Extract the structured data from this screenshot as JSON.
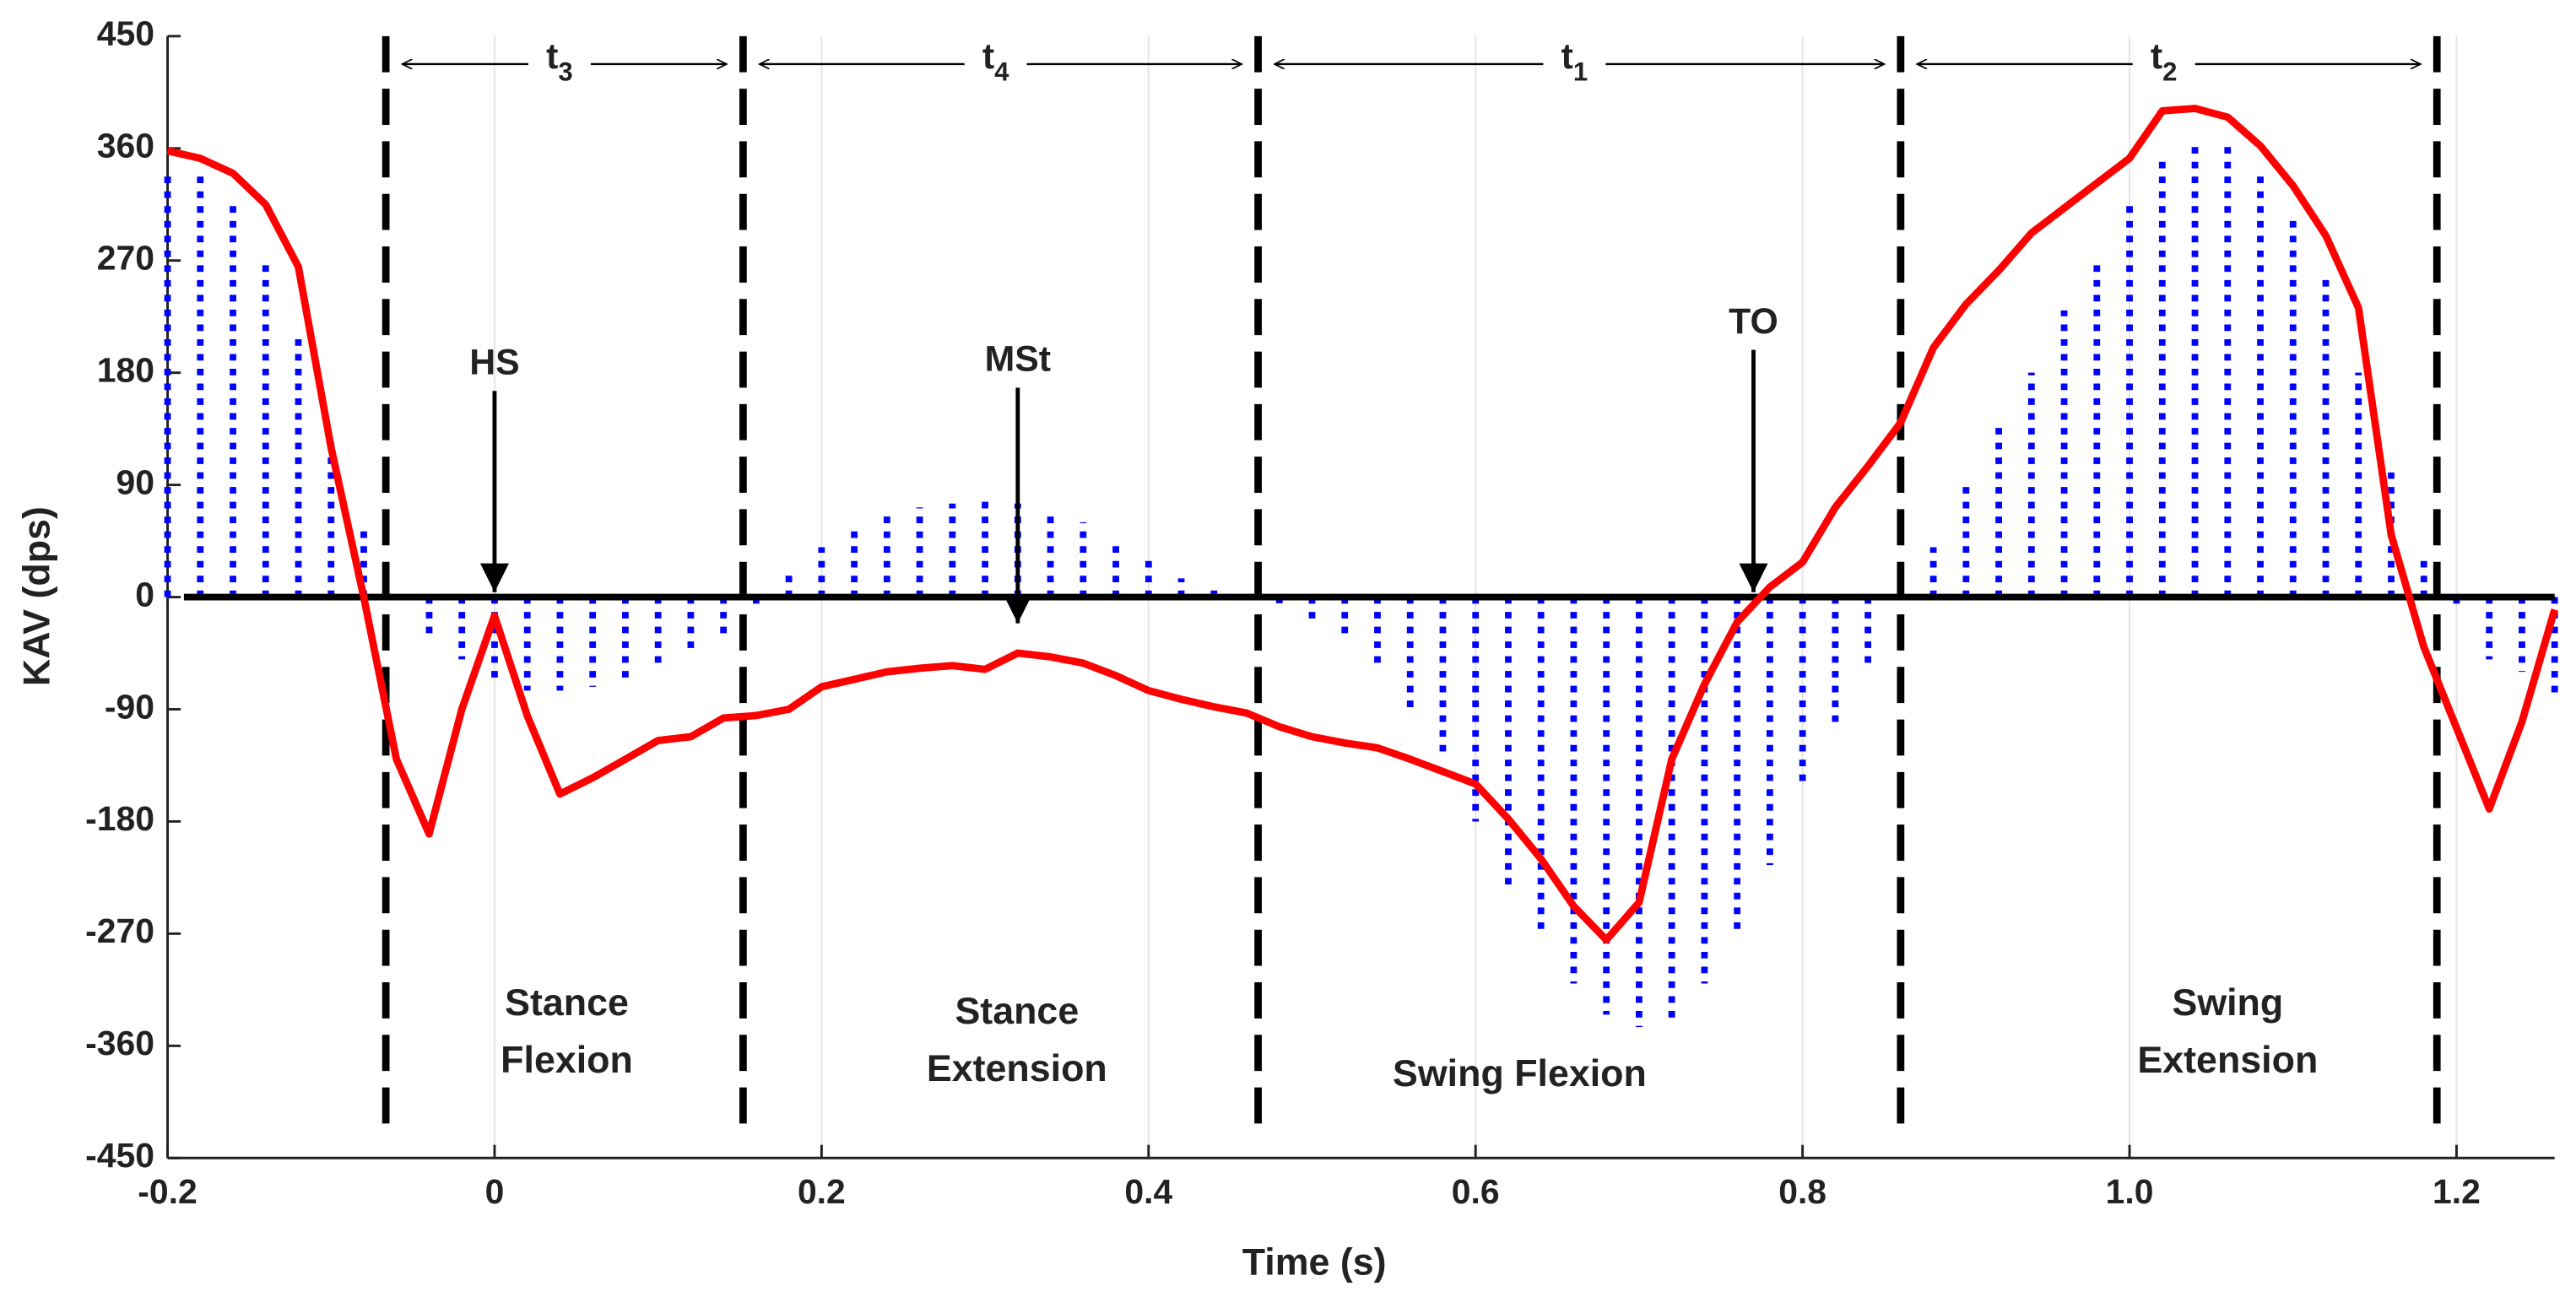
{
  "chart_data": {
    "type": "line",
    "xlabel": "Time (s)",
    "ylabel": "KAV (dps)",
    "xlim": [
      -0.2,
      1.26
    ],
    "ylim": [
      -450,
      450
    ],
    "xticks": [
      -0.2,
      0,
      0.2,
      0.4,
      0.6,
      0.8,
      {
        "value": 1,
        "label": "1.0"
      },
      1.2
    ],
    "yticks": [
      -450,
      -360,
      -270,
      -180,
      -90,
      0,
      90,
      180,
      270,
      360,
      450
    ],
    "grid": true,
    "x": [
      -0.2,
      -0.18,
      -0.16,
      -0.14,
      -0.12,
      -0.1,
      -0.08,
      -0.06,
      -0.04,
      -0.02,
      0,
      0.02,
      0.04,
      0.06,
      0.08,
      0.1,
      0.12,
      0.14,
      0.16,
      0.18,
      0.2,
      0.22,
      0.24,
      0.26,
      0.28,
      0.3,
      0.32,
      0.34,
      0.36,
      0.38,
      0.4,
      0.42,
      0.44,
      0.46,
      0.48,
      0.5,
      0.52,
      0.54,
      0.56,
      0.58,
      0.6,
      0.62,
      0.64,
      0.66,
      0.68,
      0.7,
      0.72,
      0.74,
      0.76,
      0.78,
      0.8,
      0.82,
      0.84,
      0.86,
      0.88,
      0.9,
      0.92,
      0.94,
      0.96,
      0.98,
      1.0,
      1.02,
      1.04,
      1.06,
      1.08,
      1.1,
      1.12,
      1.14,
      1.16,
      1.18,
      1.2,
      1.22,
      1.24,
      1.26
    ],
    "series": [
      {
        "style": "dotted-bars",
        "color": "#0000ff",
        "values": [
          340,
          338,
          315,
          270,
          210,
          130,
          55,
          0,
          -30,
          -50,
          -65,
          -75,
          -75,
          -72,
          -65,
          -55,
          -45,
          -30,
          -10,
          20,
          40,
          55,
          68,
          72,
          75,
          78,
          75,
          68,
          60,
          45,
          30,
          15,
          8,
          0,
          -5,
          -20,
          -35,
          -55,
          -90,
          -130,
          -180,
          -235,
          -270,
          -310,
          -335,
          -345,
          -340,
          -310,
          -270,
          -215,
          -150,
          -105,
          -55,
          0,
          40,
          90,
          140,
          180,
          230,
          270,
          315,
          355,
          365,
          365,
          340,
          305,
          255,
          180,
          100,
          35,
          -10,
          -50,
          -60,
          -80
        ]
      },
      {
        "style": "line",
        "color": "#ff0000",
        "values": [
          358,
          352,
          340,
          315,
          265,
          120,
          0,
          -130,
          -190,
          -90,
          -15,
          -95,
          -158,
          -145,
          -130,
          -115,
          -112,
          -97,
          -95,
          -90,
          -72,
          -66,
          -60,
          -57,
          -55,
          -58,
          -45,
          -48,
          -53,
          -63,
          -75,
          -82,
          -88,
          -93,
          -104,
          -112,
          -117,
          -121,
          -130,
          -140,
          -150,
          -178,
          -210,
          -248,
          -275,
          -245,
          -130,
          -70,
          -20,
          8,
          28,
          72,
          105,
          140,
          200,
          235,
          262,
          292,
          312,
          332,
          352,
          390,
          392,
          385,
          362,
          330,
          290,
          232,
          50,
          -40,
          -105,
          -170,
          -100,
          -10
        ]
      }
    ],
    "boundaries": [
      -0.0665,
      0.152,
      0.467,
      0.86,
      1.188
    ],
    "intervals": [
      {
        "label": "t",
        "sub": "3"
      },
      {
        "label": "t",
        "sub": "4"
      },
      {
        "label": "t",
        "sub": "1"
      },
      {
        "label": "t",
        "sub": "2"
      }
    ],
    "annotations": [
      {
        "text": "HS",
        "x": 0,
        "y": 0
      },
      {
        "text": "MSt",
        "x": 0.32,
        "y": -25
      },
      {
        "text": "TO",
        "x": 0.77,
        "y": 0
      }
    ],
    "phases": [
      {
        "lines": [
          "Stance",
          "Flexion"
        ]
      },
      {
        "lines": [
          "Stance",
          "Extension"
        ]
      },
      {
        "lines": [
          "Swing Flexion"
        ]
      },
      {
        "lines": [
          "Swing",
          "Extension"
        ]
      }
    ]
  }
}
